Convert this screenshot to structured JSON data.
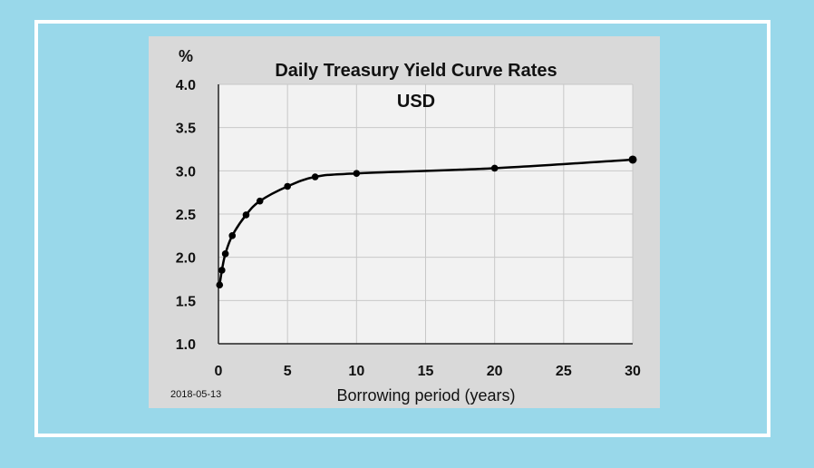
{
  "chart_data": {
    "type": "line",
    "title": "Daily Treasury Yield Curve Rates",
    "subtitle": "USD",
    "xlabel": "Borrowing period (years)",
    "ylabel": "%",
    "date_label": "2018-05-13",
    "xlim": [
      0,
      30
    ],
    "ylim": [
      1.0,
      4.0
    ],
    "xticks": [
      0,
      5,
      10,
      15,
      20,
      25,
      30
    ],
    "yticks": [
      "1.0",
      "1.5",
      "2.0",
      "2.5",
      "3.0",
      "3.5",
      "4.0"
    ],
    "grid": true,
    "series": [
      {
        "x": [
          0.0833,
          0.25,
          0.5,
          1,
          2,
          3,
          5,
          7,
          10,
          20,
          30
        ],
        "y": [
          1.68,
          1.85,
          2.04,
          2.25,
          2.49,
          2.65,
          2.82,
          2.93,
          2.97,
          3.03,
          3.13
        ]
      }
    ],
    "colors": {
      "background": "#99d8ea",
      "panel": "#d9d9d9",
      "plot": "#f2f2f2",
      "line": "#000000",
      "grid": "#c8c8c8"
    }
  }
}
